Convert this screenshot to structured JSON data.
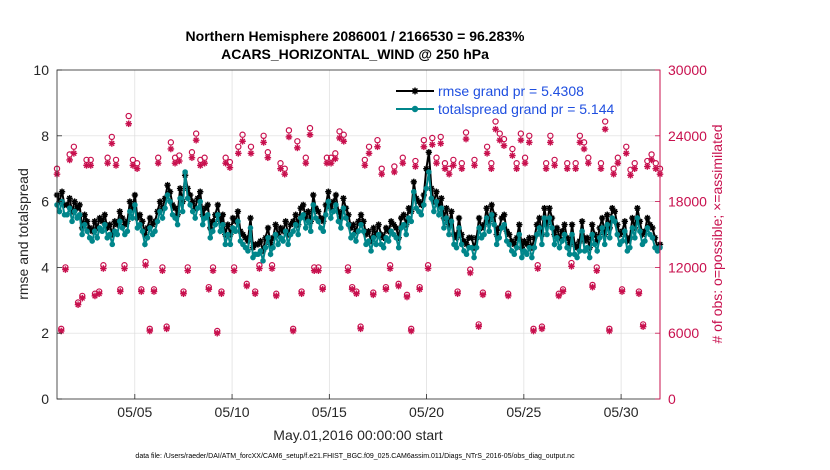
{
  "chart_data": {
    "type": "line",
    "title_lines": [
      "Northern Hemisphere 2086001 / 2166530 = 96.283%",
      "ACARS_HORIZONTAL_WIND @ 250 hPa"
    ],
    "xlabel": "May.01,2016 00:00:00 start",
    "ylabel_left": "rmse and totalspread",
    "ylabel_right": "# of obs: o=possible; ×=assimilated",
    "footnote": "data file: /Users/raeder/DAI/ATM_forcXX/CAM6_setup/f.e21.FHIST_BGC.f09_025.CAM6assim.011/Diags_NTrS_2016-05/obs_diag_output.nc",
    "x_range": [
      1,
      32
    ],
    "x_tick_values": [
      5,
      10,
      15,
      20,
      25,
      30
    ],
    "x_tick_labels": [
      "05/05",
      "05/10",
      "05/15",
      "05/20",
      "05/25",
      "05/30"
    ],
    "y_left_range": [
      0,
      10
    ],
    "y_left_ticks": [
      "0",
      "2",
      "4",
      "6",
      "8",
      "10"
    ],
    "y_right_range": [
      0,
      30000
    ],
    "y_right_ticks": [
      "0",
      "6000",
      "12000",
      "18000",
      "24000",
      "30000"
    ],
    "legend_position": "top-right",
    "grid": true,
    "series": [
      {
        "name": "rmse grand pr = 5.4308",
        "axis": "left",
        "color": "#000000",
        "marker": "star",
        "values": [
          6.2,
          6.0,
          6.3,
          5.9,
          5.9,
          6.1,
          5.7,
          6.0,
          5.8,
          5.9,
          5.2,
          5.6,
          5.4,
          5.2,
          5.1,
          5.4,
          5.2,
          5.5,
          5.4,
          5.6,
          5.2,
          5.3,
          5.0,
          5.4,
          5.3,
          5.7,
          5.5,
          5.3,
          5.4,
          6.0,
          5.8,
          6.2,
          5.5,
          5.6,
          5.4,
          5.0,
          5.2,
          5.5,
          5.3,
          5.4,
          5.7,
          6.0,
          5.8,
          6.1,
          6.5,
          6.3,
          5.9,
          5.8,
          5.6,
          6.4,
          6.0,
          6.8,
          6.4,
          6.2,
          6.0,
          5.8,
          6.1,
          6.3,
          5.6,
          5.8,
          5.9,
          5.2,
          5.4,
          5.6,
          5.9,
          5.4,
          5.6,
          5.0,
          5.3,
          5.0,
          5.5,
          5.4,
          5.7,
          5.1,
          5.0,
          4.9,
          4.8,
          5.5,
          4.6,
          4.7,
          4.7,
          4.8,
          4.5,
          4.9,
          5.2,
          4.7,
          4.9,
          5.3,
          5.0,
          5.2,
          5.1,
          5.4,
          5.0,
          5.3,
          5.4,
          5.6,
          5.3,
          5.8,
          5.9,
          5.5,
          5.7,
          5.4,
          6.2,
          5.8,
          5.7,
          5.5,
          5.4,
          5.9,
          6.3,
          5.8,
          6.0,
          6.2,
          5.7,
          5.5,
          6.1,
          5.8,
          5.6,
          5.2,
          5.3,
          5.1,
          5.4,
          5.6,
          5.4,
          5.0,
          5.1,
          4.8,
          5.2,
          5.0,
          5.3,
          5.0,
          4.9,
          5.2,
          5.1,
          5.4,
          5.3,
          5.2,
          4.9,
          5.5,
          5.6,
          5.3,
          5.8,
          5.7,
          6.6,
          6.1,
          6.0,
          5.9,
          6.2,
          7.0,
          7.5,
          6.4,
          6.0,
          6.3,
          5.9,
          6.1,
          5.5,
          5.8,
          5.3,
          5.7,
          5.0,
          4.9,
          5.5,
          5.0,
          4.8,
          4.7,
          4.9,
          4.9,
          4.6,
          4.9,
          5.5,
          5.2,
          5.3,
          5.8,
          5.4,
          5.9,
          5.6,
          5.0,
          5.2,
          5.5,
          5.6,
          5.1,
          5.0,
          4.8,
          4.7,
          4.9,
          5.3,
          4.6,
          4.8,
          4.7,
          4.9,
          4.6,
          4.9,
          5.3,
          5.5,
          5.0,
          5.8,
          5.3,
          5.8,
          5.5,
          5.0,
          5.2,
          4.9,
          5.1,
          5.3,
          4.9,
          4.7,
          5.3,
          4.7,
          4.6,
          4.8,
          5.4,
          4.8,
          4.9,
          4.6,
          5.3,
          5.0,
          4.8,
          5.2,
          5.5,
          5.0,
          5.6,
          5.2,
          5.8,
          5.7,
          5.3,
          5.0,
          5.1,
          5.4,
          4.8,
          4.9,
          5.5,
          5.2,
          5.8,
          5.4,
          5.0,
          5.1,
          5.5,
          5.3,
          5.2,
          4.9,
          4.6,
          4.7
        ]
      },
      {
        "name": "totalspread grand pr = 5.144",
        "axis": "left",
        "color": "#00868b",
        "marker": "circle",
        "values": [
          5.9,
          5.7,
          6.0,
          5.6,
          5.6,
          5.8,
          5.4,
          5.7,
          5.5,
          5.6,
          5.0,
          5.3,
          5.1,
          4.9,
          4.8,
          5.1,
          4.9,
          5.2,
          5.1,
          5.3,
          4.9,
          5.0,
          4.7,
          5.1,
          5.0,
          5.4,
          5.2,
          5.0,
          5.1,
          5.7,
          5.5,
          5.9,
          5.2,
          5.3,
          5.1,
          4.7,
          4.9,
          5.2,
          5.0,
          5.1,
          5.4,
          5.7,
          5.5,
          5.8,
          6.2,
          6.0,
          5.6,
          5.5,
          5.3,
          6.1,
          5.7,
          6.9,
          6.1,
          5.9,
          5.7,
          5.5,
          5.8,
          6.0,
          5.3,
          5.5,
          5.6,
          4.9,
          5.1,
          5.3,
          5.6,
          5.1,
          5.3,
          4.7,
          5.0,
          4.7,
          5.2,
          5.1,
          5.4,
          4.8,
          4.7,
          4.6,
          4.5,
          5.2,
          4.3,
          4.4,
          4.4,
          4.5,
          4.2,
          4.6,
          4.9,
          4.4,
          4.6,
          5.0,
          4.7,
          4.9,
          4.8,
          5.1,
          4.7,
          5.0,
          5.1,
          5.3,
          5.0,
          5.5,
          5.6,
          5.2,
          5.4,
          5.1,
          5.9,
          5.5,
          5.4,
          5.2,
          5.1,
          5.6,
          6.0,
          5.5,
          5.7,
          5.9,
          5.4,
          5.2,
          5.8,
          5.5,
          5.3,
          4.9,
          5.0,
          4.8,
          5.1,
          5.3,
          5.1,
          4.7,
          4.8,
          4.5,
          4.9,
          4.7,
          5.0,
          4.7,
          4.6,
          4.9,
          4.8,
          5.1,
          5.0,
          4.9,
          4.6,
          5.2,
          5.3,
          5.0,
          5.5,
          5.4,
          6.3,
          5.8,
          5.7,
          5.6,
          5.9,
          6.4,
          6.9,
          6.1,
          5.7,
          6.0,
          5.6,
          5.8,
          5.2,
          5.5,
          5.0,
          5.4,
          4.7,
          4.6,
          5.2,
          4.7,
          4.5,
          4.4,
          4.6,
          4.6,
          4.3,
          4.6,
          5.2,
          4.9,
          5.0,
          5.5,
          5.1,
          5.6,
          5.3,
          4.7,
          4.9,
          5.2,
          5.3,
          4.8,
          4.7,
          4.5,
          4.4,
          4.6,
          5.0,
          4.3,
          4.5,
          4.4,
          4.6,
          4.3,
          4.6,
          5.0,
          5.2,
          4.7,
          5.5,
          5.0,
          5.5,
          5.2,
          4.7,
          4.9,
          4.6,
          4.8,
          5.0,
          4.6,
          4.4,
          5.0,
          4.4,
          4.3,
          4.5,
          5.1,
          4.5,
          4.6,
          4.3,
          5.0,
          4.7,
          4.5,
          4.9,
          5.2,
          4.7,
          5.3,
          4.9,
          5.5,
          5.4,
          5.0,
          4.7,
          4.8,
          5.1,
          4.5,
          4.6,
          5.2,
          4.9,
          5.5,
          5.1,
          4.7,
          4.8,
          5.2,
          5.0,
          4.9,
          4.6,
          4.5,
          4.6
        ]
      },
      {
        "name": "possible",
        "axis": "right",
        "color": "#c8104e",
        "marker": "o",
        "values": [
          21000,
          6400,
          12000,
          22300,
          23000,
          8800,
          9400,
          21800,
          21800,
          9600,
          9800,
          12200,
          22000,
          23900,
          21800,
          10000,
          12200,
          25800,
          21800,
          21500,
          10000,
          12500,
          6400,
          10000,
          22000,
          12000,
          6600,
          23400,
          22000,
          22200,
          9800,
          12000,
          22500,
          24200,
          21800,
          22000,
          10200,
          12000,
          6200,
          9800,
          22000,
          21600,
          12000,
          23000,
          24100,
          10500,
          23000,
          9800,
          12200,
          24000,
          22500,
          12200,
          9600,
          21500,
          21000,
          24500,
          6400,
          23500,
          9800,
          22000,
          24700,
          12000,
          12000,
          10200,
          22000,
          22000,
          22400,
          24400,
          24100,
          12000,
          10200,
          9800,
          6600,
          21800,
          23000,
          9700,
          23600,
          21000,
          10200,
          12200,
          21200,
          10500,
          22000,
          9500,
          6400,
          21700,
          10200,
          23600,
          12200,
          23800,
          22000,
          23900,
          21500,
          21000,
          21800,
          9800,
          21500,
          24300,
          11800,
          21800,
          6800,
          9700,
          23000,
          21500,
          25300,
          24200,
          23700,
          9600,
          22800,
          21500,
          24200,
          22000,
          24000,
          6400,
          12200,
          6600,
          21500,
          24000,
          21800,
          9600,
          10000,
          21500,
          12400,
          21500,
          24000,
          23400,
          22000,
          10400,
          12000,
          21500,
          25300,
          6400,
          21000,
          22000,
          10000,
          23000,
          20900,
          21500,
          9800,
          6800,
          21700,
          22300,
          21500,
          21000
        ]
      },
      {
        "name": "assimilated",
        "axis": "right",
        "color": "#c8104e",
        "marker": "asterisk",
        "values": [
          20500,
          6200,
          11800,
          21800,
          22400,
          8600,
          9200,
          21300,
          21300,
          9400,
          9600,
          11900,
          21500,
          23300,
          21300,
          9800,
          11900,
          25100,
          21300,
          21000,
          9800,
          12200,
          6200,
          9800,
          21500,
          11700,
          6400,
          22800,
          21500,
          21700,
          9600,
          11700,
          22000,
          23600,
          21300,
          21500,
          10000,
          11700,
          6000,
          9600,
          21500,
          21100,
          11700,
          22400,
          23500,
          10300,
          22400,
          9600,
          11900,
          23400,
          22000,
          11900,
          9400,
          21000,
          20500,
          23900,
          6200,
          22900,
          9600,
          21500,
          24100,
          11700,
          11700,
          10000,
          21500,
          21500,
          21900,
          23800,
          23500,
          11700,
          10000,
          9600,
          6400,
          21300,
          22400,
          9500,
          23000,
          20500,
          10000,
          11900,
          20700,
          10300,
          21500,
          9300,
          6200,
          21200,
          10000,
          23000,
          11900,
          23200,
          21500,
          23300,
          21000,
          20500,
          21300,
          9600,
          21000,
          23700,
          11500,
          21300,
          6600,
          9500,
          22400,
          21000,
          24600,
          23600,
          23100,
          9400,
          22200,
          21000,
          23600,
          21500,
          23400,
          6200,
          11900,
          6400,
          21000,
          23400,
          21300,
          9400,
          9800,
          21000,
          12100,
          21000,
          23400,
          22800,
          21500,
          10200,
          11700,
          21000,
          24600,
          6200,
          20500,
          21500,
          9800,
          22400,
          20400,
          21000,
          9600,
          6600,
          21200,
          21800,
          21000,
          20500
        ]
      }
    ]
  }
}
